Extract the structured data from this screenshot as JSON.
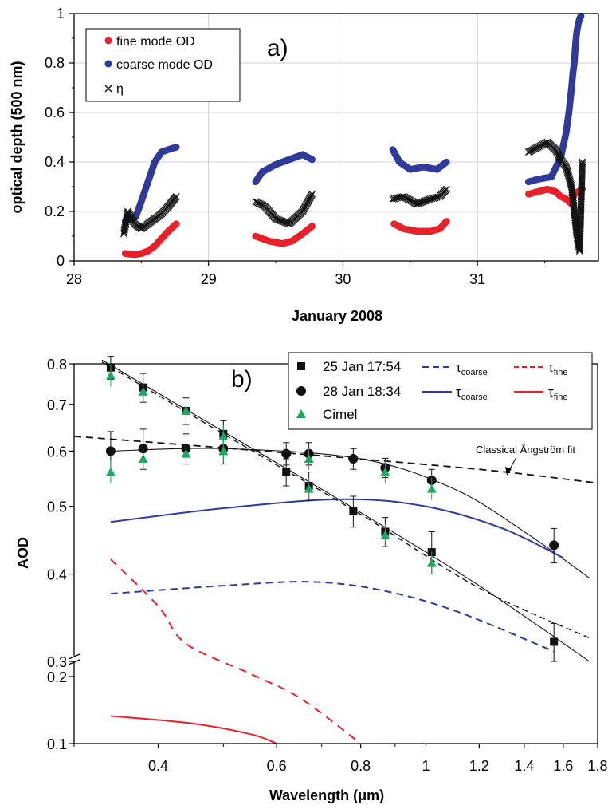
{
  "chart_data": [
    {
      "type": "scatter",
      "panel_label": "a)",
      "xlabel": "January 2008",
      "ylabel": "optical depth (500 nm)",
      "xlim": [
        28,
        31.9
      ],
      "ylim": [
        0,
        1
      ],
      "x_ticks": [
        "28",
        "29",
        "30",
        "31"
      ],
      "y_ticks": [
        "0",
        "0.2",
        "0.4",
        "0.6",
        "0.8",
        "1"
      ],
      "grid": true,
      "legend_position": "top-left",
      "series": [
        {
          "name": "fine mode OD",
          "marker": "circle",
          "color": "#e8202a",
          "x": [
            28.38,
            28.45,
            28.5,
            28.55,
            28.6,
            28.65,
            28.7,
            28.76,
            29.35,
            29.45,
            29.55,
            29.62,
            29.7,
            29.77,
            30.38,
            30.45,
            30.55,
            30.65,
            30.72,
            30.77,
            31.38,
            31.45,
            31.52,
            31.58,
            31.62,
            31.66,
            31.7,
            31.72,
            31.75,
            31.78
          ],
          "y": [
            0.03,
            0.025,
            0.03,
            0.04,
            0.06,
            0.09,
            0.12,
            0.15,
            0.1,
            0.08,
            0.07,
            0.08,
            0.11,
            0.14,
            0.15,
            0.13,
            0.12,
            0.12,
            0.13,
            0.16,
            0.27,
            0.28,
            0.29,
            0.28,
            0.26,
            0.25,
            0.23,
            0.27,
            0.28,
            0.29
          ]
        },
        {
          "name": "coarse mode OD",
          "marker": "circle",
          "color": "#2f3a9a",
          "x": [
            28.38,
            28.42,
            28.46,
            28.5,
            28.55,
            28.6,
            28.65,
            28.7,
            28.76,
            29.35,
            29.4,
            29.5,
            29.6,
            29.7,
            29.77,
            30.37,
            30.42,
            30.5,
            30.6,
            30.7,
            30.77,
            31.38,
            31.45,
            31.55,
            31.62,
            31.66,
            31.68,
            31.7,
            31.71,
            31.72,
            31.73,
            31.74,
            31.75,
            31.76,
            31.77
          ],
          "y": [
            0.16,
            0.17,
            0.18,
            0.24,
            0.32,
            0.4,
            0.44,
            0.45,
            0.46,
            0.32,
            0.36,
            0.39,
            0.41,
            0.43,
            0.41,
            0.45,
            0.4,
            0.37,
            0.38,
            0.37,
            0.4,
            0.32,
            0.33,
            0.34,
            0.42,
            0.52,
            0.6,
            0.7,
            0.76,
            0.8,
            0.88,
            0.93,
            0.96,
            0.98,
            0.99
          ]
        },
        {
          "name": "η",
          "marker": "x",
          "color": "#111111",
          "x": [
            28.37,
            28.4,
            28.45,
            28.5,
            28.55,
            28.6,
            28.65,
            28.7,
            28.76,
            29.35,
            29.42,
            29.5,
            29.6,
            29.7,
            29.77,
            30.37,
            30.45,
            30.55,
            30.65,
            30.72,
            30.77,
            31.38,
            31.45,
            31.52,
            31.58,
            31.62,
            31.66,
            31.7,
            31.72,
            31.74,
            31.76,
            31.78
          ],
          "y": [
            0.11,
            0.2,
            0.15,
            0.13,
            0.15,
            0.17,
            0.19,
            0.22,
            0.26,
            0.24,
            0.22,
            0.17,
            0.15,
            0.2,
            0.27,
            0.25,
            0.26,
            0.23,
            0.25,
            0.26,
            0.29,
            0.44,
            0.46,
            0.48,
            0.45,
            0.41,
            0.38,
            0.3,
            0.2,
            0.1,
            0.04,
            0.4
          ]
        }
      ]
    },
    {
      "type": "line",
      "panel_label": "b)",
      "xlabel": "Wavelength (μm)",
      "ylabel": "AOD",
      "xscale": "log",
      "yscale": "log",
      "xlim": [
        0.3,
        1.8
      ],
      "ylim_upper": [
        0.3,
        0.8
      ],
      "ylim_lower": [
        0.1,
        0.2
      ],
      "y_axis_break": true,
      "x_ticks": [
        "0.4",
        "0.6",
        "0.8",
        "1",
        "1.2",
        "1.4",
        "1.6",
        "1.8"
      ],
      "y_ticks_upper": [
        "0.3",
        "0.4",
        "0.5",
        "0.6",
        "0.7",
        "0.8"
      ],
      "y_ticks_lower": [
        "0.1",
        "0.2"
      ],
      "legend_position": "top-right",
      "annotation": "Classical Ångström fit",
      "legend": [
        {
          "name": "25 Jan 17:54",
          "marker": "square",
          "color": "#111111"
        },
        {
          "name": "28 Jan 18:34",
          "marker": "circle",
          "color": "#111111"
        },
        {
          "name": "Cimel",
          "marker": "triangle",
          "color": "#1fa862"
        }
      ],
      "legend_lines": [
        {
          "symbol": "τ",
          "subscript": "coarse",
          "style": "dashed",
          "color": "#2f3a9a"
        },
        {
          "symbol": "τ",
          "subscript": "fine",
          "style": "dashed",
          "color": "#e8202a"
        },
        {
          "symbol": "τ",
          "subscript": "coarse",
          "style": "solid",
          "color": "#2f3a9a"
        },
        {
          "symbol": "τ",
          "subscript": "fine",
          "style": "solid",
          "color": "#e8202a"
        }
      ],
      "series": [
        {
          "name": "25 Jan 17:54",
          "marker": "square",
          "color": "#111111",
          "x": [
            0.34,
            0.38,
            0.44,
            0.5,
            0.62,
            0.67,
            0.78,
            0.87,
            1.02,
            1.55
          ],
          "y": [
            0.79,
            0.74,
            0.685,
            0.635,
            0.56,
            0.535,
            0.492,
            0.46,
            0.43,
            0.32
          ],
          "error": [
            0.03,
            0.035,
            0.03,
            0.028,
            0.025,
            0.025,
            0.025,
            0.022,
            0.03,
            0.02
          ]
        },
        {
          "name": "28 Jan 18:34",
          "marker": "circle",
          "color": "#111111",
          "x": [
            0.34,
            0.38,
            0.44,
            0.5,
            0.62,
            0.67,
            0.78,
            0.87,
            1.02,
            1.55
          ],
          "y": [
            0.6,
            0.605,
            0.605,
            0.605,
            0.595,
            0.595,
            0.585,
            0.568,
            0.545,
            0.44
          ],
          "error": [
            0.04,
            0.04,
            0.03,
            0.03,
            0.022,
            0.022,
            0.02,
            0.018,
            0.02,
            0.025
          ]
        },
        {
          "name": "Cimel",
          "marker": "triangle",
          "color": "#1fa862",
          "x": [
            0.34,
            0.38,
            0.44,
            0.5,
            0.67,
            0.87,
            1.02
          ],
          "y": [
            0.77,
            0.73,
            0.685,
            0.63,
            0.53,
            0.455,
            0.415
          ],
          "y2": [
            0.56,
            0.585,
            0.595,
            0.6,
            0.585,
            0.56,
            0.53
          ]
        },
        {
          "name": "fit 25 Jan",
          "style": "solid",
          "color": "#111111",
          "x": [
            0.33,
            0.5,
            0.8,
            1.2,
            1.75
          ],
          "y": [
            0.81,
            0.64,
            0.49,
            0.385,
            0.3
          ]
        },
        {
          "name": "fit 28 Jan",
          "style": "solid",
          "color": "#111111",
          "x": [
            0.34,
            0.5,
            0.8,
            1.1,
            1.4,
            1.75
          ],
          "y": [
            0.6,
            0.605,
            0.585,
            0.53,
            0.46,
            0.395
          ]
        },
        {
          "name": "Classical Ångström fit",
          "style": "dashed",
          "color": "#111111",
          "x": [
            0.3,
            0.6,
            1.2,
            1.8
          ],
          "y": [
            0.63,
            0.598,
            0.565,
            0.54
          ]
        },
        {
          "name": "τcoarse 28 Jan",
          "style": "solid",
          "color": "#2f3a9a",
          "x": [
            0.34,
            0.5,
            0.75,
            1.0,
            1.3,
            1.6
          ],
          "y": [
            0.475,
            0.497,
            0.512,
            0.5,
            0.465,
            0.422
          ]
        },
        {
          "name": "τcoarse 25 Jan",
          "style": "dashed",
          "color": "#2f3a9a",
          "x": [
            0.34,
            0.5,
            0.67,
            0.85,
            1.1,
            1.55
          ],
          "y": [
            0.375,
            0.385,
            0.39,
            0.38,
            0.355,
            0.31
          ]
        },
        {
          "name": "τfine 25 Jan",
          "style": "dashed",
          "color": "#e8202a",
          "x": [
            0.34,
            0.4,
            0.44,
            0.55,
            0.65,
            0.8
          ],
          "y": [
            0.42,
            0.36,
            0.318,
            0.205,
            0.16,
            0.1
          ]
        },
        {
          "name": "τfine 28 Jan",
          "style": "solid",
          "color": "#e8202a",
          "x": [
            0.34,
            0.45,
            0.55,
            0.6
          ],
          "y": [
            0.133,
            0.123,
            0.11,
            0.1
          ]
        }
      ]
    }
  ]
}
